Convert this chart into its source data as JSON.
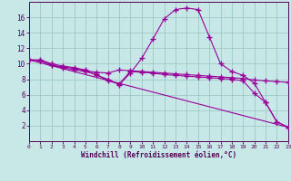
{
  "background_color": "#c8e8e8",
  "grid_color": "#a0c8c8",
  "line_color": "#990099",
  "xlabel": "Windchill (Refroidissement éolien,°C)",
  "xlim": [
    0,
    23
  ],
  "ylim": [
    0,
    18
  ],
  "yticks": [
    2,
    4,
    6,
    8,
    10,
    12,
    14,
    16
  ],
  "xticks": [
    0,
    1,
    2,
    3,
    4,
    5,
    6,
    7,
    8,
    9,
    10,
    11,
    12,
    13,
    14,
    15,
    16,
    17,
    18,
    19,
    20,
    21,
    22,
    23
  ],
  "curve1_x": [
    0,
    1,
    2,
    3,
    4,
    5,
    6,
    7,
    8,
    9,
    10,
    11,
    12,
    13,
    14,
    15,
    16,
    17,
    18,
    19,
    20,
    21,
    22,
    23
  ],
  "curve1_y": [
    10.5,
    10.5,
    10.0,
    9.7,
    9.5,
    9.2,
    8.5,
    8.0,
    7.3,
    8.8,
    10.7,
    13.2,
    15.8,
    17.0,
    17.2,
    17.0,
    13.5,
    10.0,
    9.0,
    8.5,
    7.5,
    5.0,
    2.5,
    1.8
  ],
  "curve2_x": [
    0,
    1,
    2,
    3,
    4,
    5,
    6,
    7,
    8,
    9,
    10,
    11,
    12,
    13,
    14,
    15,
    16,
    17,
    18,
    19,
    20,
    21,
    22,
    23
  ],
  "curve2_y": [
    10.5,
    10.4,
    9.8,
    9.6,
    9.4,
    9.1,
    8.9,
    8.8,
    9.2,
    9.1,
    9.0,
    8.9,
    8.8,
    8.7,
    8.6,
    8.5,
    8.4,
    8.3,
    8.2,
    8.1,
    7.9,
    7.8,
    7.7,
    7.6
  ],
  "line3_x": [
    0,
    23
  ],
  "line3_y": [
    10.5,
    1.8
  ],
  "curve4_x": [
    0,
    1,
    2,
    3,
    4,
    5,
    6,
    7,
    8,
    9,
    10,
    11,
    12,
    13,
    14,
    15,
    16,
    17,
    18,
    19,
    20,
    21,
    22,
    23
  ],
  "curve4_y": [
    10.5,
    10.4,
    9.8,
    9.5,
    9.2,
    9.0,
    8.6,
    7.8,
    7.4,
    9.0,
    8.9,
    8.8,
    8.6,
    8.5,
    8.4,
    8.3,
    8.2,
    8.1,
    8.0,
    7.8,
    6.2,
    5.0,
    2.5,
    1.8
  ]
}
